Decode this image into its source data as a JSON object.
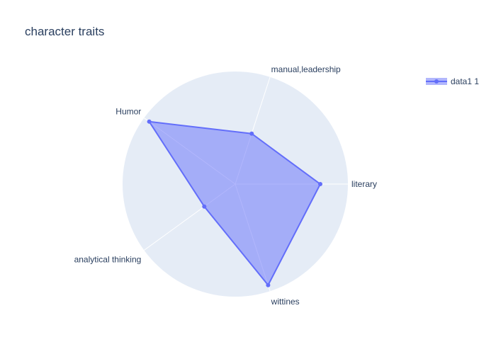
{
  "chart_data": {
    "type": "radar",
    "title": "character traits",
    "categories": [
      "literary",
      "manual,leadership",
      "Humor",
      "analytical thinking",
      "wittines"
    ],
    "series": [
      {
        "name": "data1 1",
        "values": [
          4,
          2.5,
          5,
          1.8,
          5
        ],
        "line_color": "#636efa",
        "fill_color": "#636efa"
      }
    ],
    "radial_range": [
      0,
      5.3
    ],
    "grid": true,
    "legend_position": "top-right",
    "background_color": "#e5ecf6",
    "grid_color": "#ffffff"
  }
}
